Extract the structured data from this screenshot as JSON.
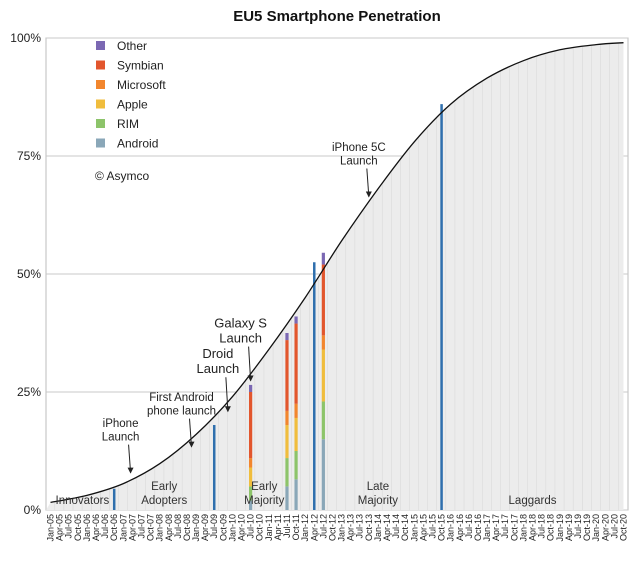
{
  "chart_data": {
    "type": "area",
    "title": "EU5 Smartphone Penetration",
    "xlabel": "",
    "ylabel": "",
    "ylim": [
      0,
      100
    ],
    "y_ticks": [
      "0%",
      "25%",
      "50%",
      "75%",
      "100%"
    ],
    "y_tick_values": [
      0,
      25,
      50,
      75,
      100
    ],
    "x_ticks": [
      "Jan-05",
      "Apr-05",
      "Jul-05",
      "Oct-05",
      "Jan-06",
      "Apr-06",
      "Jul-06",
      "Oct-06",
      "Jan-07",
      "Apr-07",
      "Jul-07",
      "Oct-07",
      "Jan-08",
      "Apr-08",
      "Jul-08",
      "Oct-08",
      "Jan-09",
      "Apr-09",
      "Jul-09",
      "Oct-09",
      "Jan-10",
      "Apr-10",
      "Jul-10",
      "Oct-10",
      "Jan-11",
      "Apr-11",
      "Jul-11",
      "Oct-11",
      "Jan-12",
      "Apr-12",
      "Jul-12",
      "Oct-12",
      "Jan-13",
      "Apr-13",
      "Jul-13",
      "Oct-13",
      "Jan-14",
      "Apr-14",
      "Jul-14",
      "Oct-14",
      "Jan-15",
      "Apr-15",
      "Jul-15",
      "Oct-15",
      "Jan-16",
      "Apr-16",
      "Jul-16",
      "Oct-16",
      "Jan-17",
      "Apr-17",
      "Jul-17",
      "Oct-17",
      "Jan-18",
      "Apr-18",
      "Jul-18",
      "Oct-18",
      "Jan-19",
      "Apr-19",
      "Jul-19",
      "Oct-19",
      "Jan-20",
      "Apr-20",
      "Jul-20",
      "Oct-20"
    ],
    "curve": {
      "name": "Adoption S-curve",
      "x": [
        0,
        4,
        8,
        12,
        16,
        20,
        24,
        28,
        32,
        36,
        40,
        44,
        48,
        52,
        56,
        60,
        63
      ],
      "y": [
        1.6,
        3.1,
        5.6,
        9.8,
        16.0,
        24.0,
        34.0,
        45.0,
        57.0,
        68.0,
        78.0,
        86.0,
        91.5,
        95.2,
        97.5,
        98.6,
        99.0
      ]
    },
    "legend": {
      "position": "top-left",
      "items": [
        {
          "name": "Other",
          "color": "#7b68b3"
        },
        {
          "name": "Symbian",
          "color": "#e2562d"
        },
        {
          "name": "Microsoft",
          "color": "#f2862e"
        },
        {
          "name": "Apple",
          "color": "#f0bd3d"
        },
        {
          "name": "RIM",
          "color": "#8dc46a"
        },
        {
          "name": "Android",
          "color": "#8aa7b8"
        }
      ]
    },
    "watermark": "© Asymco",
    "segment_lines": [
      {
        "x": 7,
        "value": 4.5,
        "color": "#2f6fad"
      },
      {
        "x": 18,
        "value": 18.0,
        "color": "#2f6fad"
      },
      {
        "x": 29,
        "value": 52.5,
        "color": "#2f6fad"
      },
      {
        "x": 43,
        "value": 86.0,
        "color": "#2f6fad"
      }
    ],
    "stacked_bars": [
      {
        "x": 22,
        "series": [
          {
            "name": "Android",
            "value": 2.0
          },
          {
            "name": "RIM",
            "value": 3.0
          },
          {
            "name": "Apple",
            "value": 4.0
          },
          {
            "name": "Microsoft",
            "value": 2.0
          },
          {
            "name": "Symbian",
            "value": 14.0
          },
          {
            "name": "Other",
            "value": 1.5
          }
        ]
      },
      {
        "x": 26,
        "series": [
          {
            "name": "Android",
            "value": 5.0
          },
          {
            "name": "RIM",
            "value": 6.0
          },
          {
            "name": "Apple",
            "value": 7.0
          },
          {
            "name": "Microsoft",
            "value": 3.0
          },
          {
            "name": "Symbian",
            "value": 15.0
          },
          {
            "name": "Other",
            "value": 1.5
          }
        ]
      },
      {
        "x": 27,
        "series": [
          {
            "name": "Android",
            "value": 6.5
          },
          {
            "name": "RIM",
            "value": 6.0
          },
          {
            "name": "Apple",
            "value": 7.0
          },
          {
            "name": "Microsoft",
            "value": 3.0
          },
          {
            "name": "Symbian",
            "value": 17.0
          },
          {
            "name": "Other",
            "value": 1.5
          }
        ]
      },
      {
        "x": 30,
        "series": [
          {
            "name": "Android",
            "value": 15.0
          },
          {
            "name": "RIM",
            "value": 8.0
          },
          {
            "name": "Apple",
            "value": 11.0
          },
          {
            "name": "Microsoft",
            "value": 3.0
          },
          {
            "name": "Symbian",
            "value": 15.0
          },
          {
            "name": "Other",
            "value": 2.5
          }
        ]
      }
    ],
    "annotations": [
      {
        "text": [
          "iPhone",
          "Launch"
        ],
        "x": 8.8,
        "y": 7.5,
        "size": "normal"
      },
      {
        "text": [
          "First Android",
          "phone launch"
        ],
        "x": 15.5,
        "y": 13.0,
        "size": "normal"
      },
      {
        "text": [
          "Droid",
          "Launch"
        ],
        "x": 19.5,
        "y": 20.5,
        "size": "large"
      },
      {
        "text": [
          "Galaxy S",
          "Launch"
        ],
        "x": 22.0,
        "y": 27.0,
        "size": "large"
      },
      {
        "text": [
          "iPhone 5C",
          "Launch"
        ],
        "x": 35.0,
        "y": 66.0,
        "size": "normal"
      }
    ],
    "segments": [
      {
        "label": [
          "Innovators"
        ],
        "x": 3.5
      },
      {
        "label": [
          "Early",
          "Adopters"
        ],
        "x": 12.5
      },
      {
        "label": [
          "Early",
          "Majority"
        ],
        "x": 23.5
      },
      {
        "label": [
          "Late",
          "Majority"
        ],
        "x": 36.0
      },
      {
        "label": [
          "Laggards"
        ],
        "x": 53.0
      }
    ]
  }
}
